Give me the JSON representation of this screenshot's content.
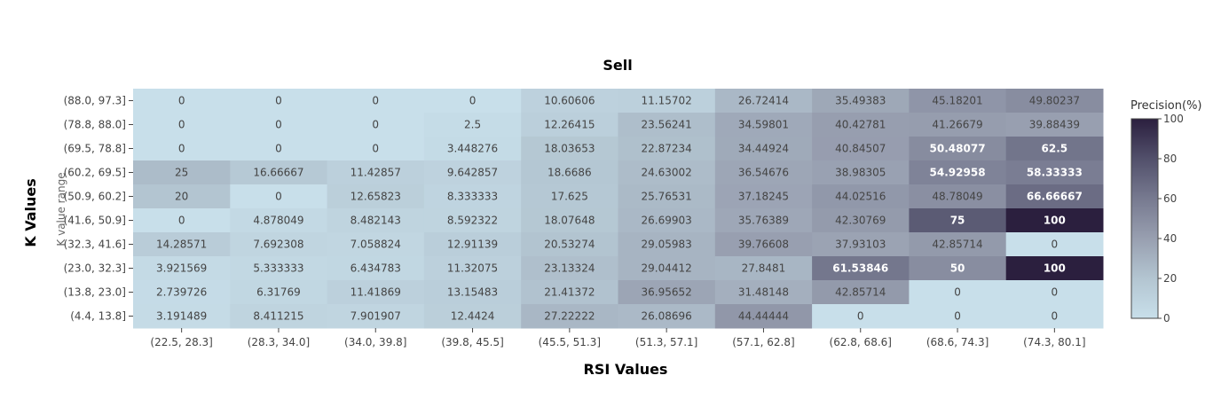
{
  "chart_data": {
    "type": "heatmap",
    "title": "Sell",
    "xlabel": "RSI Values",
    "ylabel": "K Values",
    "overlay_label": "K value range",
    "x_categories": [
      "(22.5, 28.3]",
      "(28.3, 34.0]",
      "(34.0, 39.8]",
      "(39.8, 45.5]",
      "(45.5, 51.3]",
      "(51.3, 57.1]",
      "(57.1, 62.8]",
      "(62.8, 68.6]",
      "(68.6, 74.3]",
      "(74.3, 80.1]"
    ],
    "y_categories": [
      "(88.0, 97.3]",
      "(78.8, 88.0]",
      "(69.5, 78.8]",
      "(60.2, 69.5]",
      "(50.9, 60.2]",
      "(41.6, 50.9]",
      "(32.3, 41.6]",
      "(23.0, 32.3]",
      "(13.8, 23.0]",
      "(4.4, 13.8]"
    ],
    "values": [
      [
        "0",
        "0",
        "0",
        "0",
        "10.60606",
        "11.15702",
        "26.72414",
        "35.49383",
        "45.18201",
        "49.80237"
      ],
      [
        "0",
        "0",
        "0",
        "2.5",
        "12.26415",
        "23.56241",
        "34.59801",
        "40.42781",
        "41.26679",
        "39.88439"
      ],
      [
        "0",
        "0",
        "0",
        "3.448276",
        "18.03653",
        "22.87234",
        "34.44924",
        "40.84507",
        "50.48077",
        "62.5"
      ],
      [
        "25",
        "16.66667",
        "11.42857",
        "9.642857",
        "18.6686",
        "24.63002",
        "36.54676",
        "38.98305",
        "54.92958",
        "58.33333"
      ],
      [
        "20",
        "0",
        "12.65823",
        "8.333333",
        "17.625",
        "25.76531",
        "37.18245",
        "44.02516",
        "48.78049",
        "66.66667"
      ],
      [
        "0",
        "4.878049",
        "8.482143",
        "8.592322",
        "18.07648",
        "26.69903",
        "35.76389",
        "42.30769",
        "75",
        "100"
      ],
      [
        "14.28571",
        "7.692308",
        "7.058824",
        "12.91139",
        "20.53274",
        "29.05983",
        "39.76608",
        "37.93103",
        "42.85714",
        "0"
      ],
      [
        "3.921569",
        "5.333333",
        "6.434783",
        "11.32075",
        "23.13324",
        "29.04412",
        "27.8481",
        "61.53846",
        "50",
        "100"
      ],
      [
        "2.739726",
        "6.31769",
        "11.41869",
        "13.15483",
        "21.41372",
        "36.95652",
        "31.48148",
        "42.85714",
        "0",
        "0"
      ],
      [
        "3.191489",
        "8.411215",
        "7.901907",
        "12.4424",
        "27.22222",
        "26.08696",
        "44.44444",
        "0",
        "0",
        "0"
      ]
    ],
    "colorbar": {
      "title": "Precision(%)",
      "range": [
        0,
        100
      ],
      "ticks": [
        "0",
        "20",
        "40",
        "60",
        "80",
        "100"
      ]
    },
    "colorscale": [
      [
        0,
        "#c8dfea"
      ],
      [
        0.2,
        "#b3c5d1"
      ],
      [
        0.4,
        "#989fb0"
      ],
      [
        0.6,
        "#777a90"
      ],
      [
        0.8,
        "#52506b"
      ],
      [
        1,
        "#2b1f3e"
      ]
    ],
    "text_colors": {
      "light": "#444444",
      "dark": "#ffffff"
    }
  }
}
